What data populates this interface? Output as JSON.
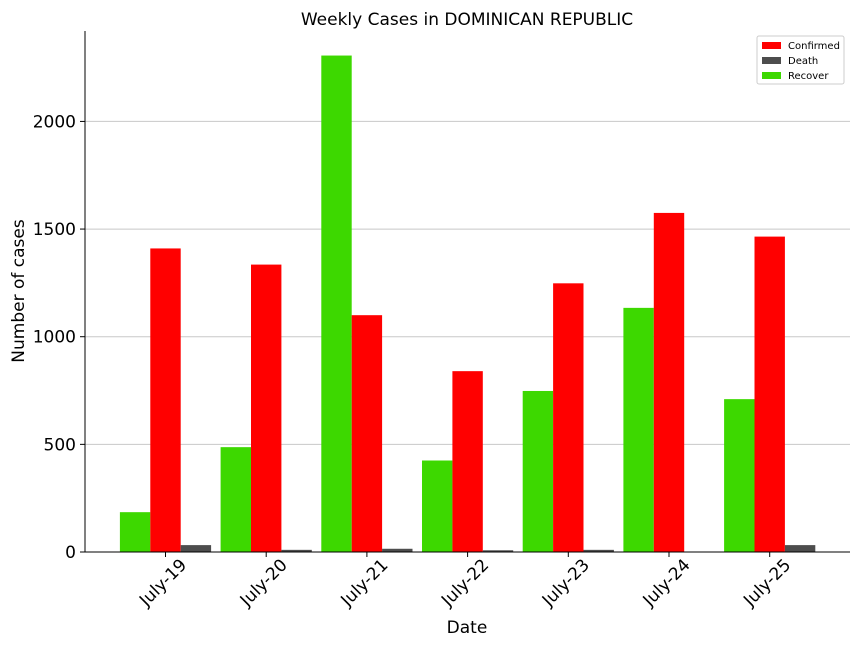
{
  "chart_data": {
    "type": "bar",
    "title": "Weekly Cases in DOMINICAN REPUBLIC",
    "xlabel": "Date",
    "ylabel": "Number of cases",
    "categories": [
      "July-19",
      "July-20",
      "July-21",
      "July-22",
      "July-23",
      "July-24",
      "July-25"
    ],
    "ylim": [
      0,
      2420
    ],
    "yticks": [
      0,
      500,
      1000,
      1500,
      2000
    ],
    "grid": "horizontal",
    "legend_position": "top-right",
    "series": [
      {
        "name": "Recover",
        "color": "#3dd800",
        "values": [
          185,
          487,
          2306,
          425,
          748,
          1134,
          710
        ]
      },
      {
        "name": "Confirmed",
        "color": "#ff0000",
        "values": [
          1410,
          1335,
          1100,
          840,
          1248,
          1575,
          1465
        ]
      },
      {
        "name": "Death",
        "color": "#4d4d4d",
        "values": [
          32,
          10,
          15,
          8,
          10,
          0,
          32
        ]
      }
    ],
    "legend_order": [
      "Confirmed",
      "Death",
      "Recover"
    ]
  }
}
